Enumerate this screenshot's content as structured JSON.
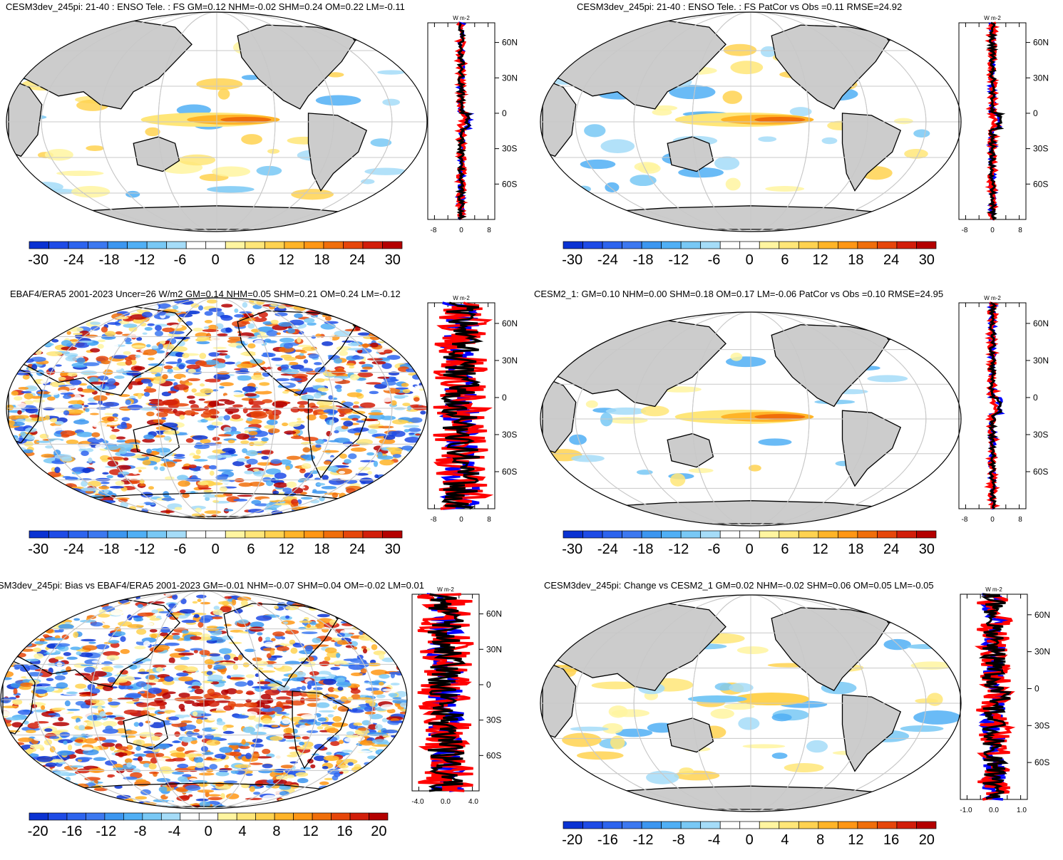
{
  "panels": [
    {
      "title": "CESM3dev_245pi: 21-40 : ENSO Tele. : FS GM=0.12 NHM=-0.02 SHM=0.24 OM=0.22 LM=-0.11",
      "style": "smooth",
      "unit": "W m-2",
      "lat_ticks": [
        "60N",
        "30N",
        "0",
        "30S",
        "60S"
      ],
      "x_ticks": [
        "-8",
        "0",
        "8"
      ],
      "colorbar_labels": [
        "-30",
        "-24",
        "-18",
        "-12",
        "-6",
        "0",
        "6",
        "12",
        "18",
        "24",
        "30"
      ]
    },
    {
      "title": "CESM3dev_245pi: 21-40 : ENSO Tele. : FS PatCor vs Obs =0.11 RMSE=24.92",
      "style": "smooth",
      "unit": "W m-2",
      "lat_ticks": [
        "60N",
        "30N",
        "0",
        "30S",
        "60S"
      ],
      "x_ticks": [
        "-8",
        "0",
        "8"
      ],
      "colorbar_labels": [
        "-30",
        "-24",
        "-18",
        "-12",
        "-6",
        "0",
        "6",
        "12",
        "18",
        "24",
        "30"
      ]
    },
    {
      "title": "EBAF4/ERA5 2001-2023 Uncer=26 W/m2 GM=0.14 NHM=0.05 SHM=0.21 OM=0.24 LM=-0.12",
      "style": "noisy",
      "unit": "W m-2",
      "lat_ticks": [
        "60N",
        "30N",
        "0",
        "30S",
        "60S"
      ],
      "x_ticks": [
        "-8",
        "0",
        "8"
      ],
      "colorbar_labels": [
        "-30",
        "-24",
        "-18",
        "-12",
        "-6",
        "0",
        "6",
        "12",
        "18",
        "24",
        "30"
      ]
    },
    {
      "title": "CESM2_1: GM=0.10 NHM=0.00 SHM=0.18 OM=0.17 LM=-0.06 PatCor vs Obs =0.10 RMSE=24.95",
      "style": "smooth-weak",
      "unit": "W m-2",
      "lat_ticks": [
        "60N",
        "30N",
        "0",
        "30S",
        "60S"
      ],
      "x_ticks": [
        "-8",
        "0",
        "8"
      ],
      "colorbar_labels": [
        "-30",
        "-24",
        "-18",
        "-12",
        "-6",
        "0",
        "6",
        "12",
        "18",
        "24",
        "30"
      ]
    },
    {
      "title": "SM3dev_245pi: Bias vs EBAF4/ERA5 2001-2023 GM=-0.01 NHM=-0.07 SHM=0.04 OM=-0.02 LM=0.01",
      "style": "noisy",
      "unit": "W m-2",
      "lat_ticks": [
        "60N",
        "30N",
        "0",
        "30S",
        "60S"
      ],
      "x_ticks": [
        "-4.0",
        "0.0",
        "4.0"
      ],
      "colorbar_labels": [
        "-20",
        "-16",
        "-12",
        "-8",
        "-4",
        "0",
        "4",
        "8",
        "12",
        "16",
        "20"
      ]
    },
    {
      "title": "CESM3dev_245pi: Change vs CESM2_1 GM=0.02 NHM=-0.02 SHM=0.06 OM=0.05 LM=-0.05",
      "style": "change",
      "unit": "W m-2",
      "lat_ticks": [
        "60N",
        "30N",
        "0",
        "30S",
        "60S"
      ],
      "x_ticks": [
        "-1.0",
        "0.0",
        "1.0"
      ],
      "colorbar_labels": [
        "-20",
        "-16",
        "-12",
        "-8",
        "-4",
        "0",
        "4",
        "8",
        "12",
        "16",
        "20"
      ]
    }
  ],
  "colors": {
    "ocean": "#ffffff",
    "land": "#cccccc",
    "grid": "#c8c8c8",
    "profile_lines": [
      "#0000ff",
      "#ff0000",
      "#000000"
    ],
    "colorbar": [
      "#0a32d2",
      "#1e4be6",
      "#2d64ee",
      "#3c78f0",
      "#3c96f0",
      "#50aff5",
      "#78c8f5",
      "#a5dcf8",
      "#ffffff",
      "#ffffff",
      "#fff5a0",
      "#ffe678",
      "#ffd250",
      "#ffb428",
      "#ff9614",
      "#f06e0a",
      "#e6460a",
      "#d21e0a",
      "#b40000"
    ]
  }
}
